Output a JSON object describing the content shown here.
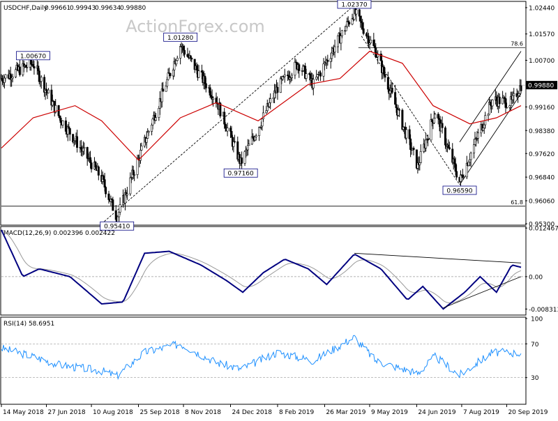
{
  "watermark": "ActionForex.com",
  "chart_data": [
    {
      "type": "candlestick",
      "title": "USDCHF,Daily",
      "ohlc": [
        "0.99661",
        "0.99943",
        "0.99634",
        "0.99880"
      ],
      "last_price": "0.99880",
      "ylim": [
        0.953,
        1.026
      ],
      "yticks": [
        "1.02440",
        "1.01570",
        "1.00700",
        "0.99880",
        "0.99160",
        "0.98380",
        "0.97620",
        "0.96840",
        "0.96060",
        "0.95300"
      ],
      "callouts": [
        {
          "label": "1.00670",
          "price": 1.0067,
          "date": "2018-06-14"
        },
        {
          "label": "1.01280",
          "price": 1.0128,
          "date": "2018-11-05"
        },
        {
          "label": "1.02370",
          "price": 1.0237,
          "date": "2019-04-24"
        },
        {
          "label": "0.97160",
          "price": 0.9716,
          "date": "2019-01-03"
        },
        {
          "label": "0.95410",
          "price": 0.9541,
          "date": "2018-09-04"
        },
        {
          "label": "0.96590",
          "price": 0.9659,
          "date": "2019-08-05"
        }
      ],
      "fib_levels": [
        {
          "label": "78.6",
          "price": 1.0112
        },
        {
          "label": "61.8",
          "price": 0.9588
        }
      ],
      "key_points": [
        {
          "date": "2018-05-14",
          "price": 1.001
        },
        {
          "date": "2018-06-14",
          "price": 1.006
        },
        {
          "date": "2018-07-10",
          "price": 0.988
        },
        {
          "date": "2018-08-20",
          "price": 0.968
        },
        {
          "date": "2018-09-04",
          "price": 0.955
        },
        {
          "date": "2018-10-01",
          "price": 0.98
        },
        {
          "date": "2018-11-05",
          "price": 1.012
        },
        {
          "date": "2018-12-10",
          "price": 0.994
        },
        {
          "date": "2019-01-03",
          "price": 0.973
        },
        {
          "date": "2019-02-08",
          "price": 0.998
        },
        {
          "date": "2019-02-28",
          "price": 1.006
        },
        {
          "date": "2019-03-15",
          "price": 0.999
        },
        {
          "date": "2019-04-24",
          "price": 1.023
        },
        {
          "date": "2019-05-15",
          "price": 1.01
        },
        {
          "date": "2019-06-25",
          "price": 0.972
        },
        {
          "date": "2019-07-12",
          "price": 0.99
        },
        {
          "date": "2019-08-05",
          "price": 0.967
        },
        {
          "date": "2019-09-06",
          "price": 0.994
        },
        {
          "date": "2019-09-25",
          "price": 0.993
        },
        {
          "date": "2019-10-04",
          "price": 0.9988
        }
      ],
      "ma_points": [
        {
          "date": "2018-05-14",
          "price": 0.978
        },
        {
          "date": "2018-06-14",
          "price": 0.988
        },
        {
          "date": "2018-07-25",
          "price": 0.992
        },
        {
          "date": "2018-08-20",
          "price": 0.987
        },
        {
          "date": "2018-09-25",
          "price": 0.974
        },
        {
          "date": "2018-11-05",
          "price": 0.988
        },
        {
          "date": "2018-12-10",
          "price": 0.993
        },
        {
          "date": "2019-01-20",
          "price": 0.987
        },
        {
          "date": "2019-03-10",
          "price": 0.999
        },
        {
          "date": "2019-04-10",
          "price": 1.001
        },
        {
          "date": "2019-05-09",
          "price": 1.01
        },
        {
          "date": "2019-06-10",
          "price": 1.006
        },
        {
          "date": "2019-07-10",
          "price": 0.992
        },
        {
          "date": "2019-08-15",
          "price": 0.986
        },
        {
          "date": "2019-09-10",
          "price": 0.988
        },
        {
          "date": "2019-10-04",
          "price": 0.992
        }
      ],
      "trendlines": [
        {
          "from": {
            "date": "2018-08-20",
            "price": 0.953
          },
          "to": {
            "date": "2019-04-20",
            "price": 1.024
          },
          "style": "dashed"
        },
        {
          "from": {
            "date": "2019-05-01",
            "price": 1.015
          },
          "to": {
            "date": "2019-08-05",
            "price": 0.9659
          },
          "style": "dashed"
        },
        {
          "from": {
            "date": "2019-08-05",
            "price": 0.9659
          },
          "to": {
            "date": "2019-10-04",
            "price": 0.996
          },
          "style": "solid"
        },
        {
          "from": {
            "date": "2019-08-05",
            "price": 0.98
          },
          "to": {
            "date": "2019-10-04",
            "price": 1.01
          },
          "style": "solid"
        }
      ]
    },
    {
      "type": "line",
      "title": "MACD(12,26,9) 0.002396 0.002422",
      "yticks": [
        "0.012467",
        "0.00",
        "-0.008313"
      ],
      "ylim": [
        -0.0095,
        0.0125
      ],
      "macd_points": [
        {
          "date": "2018-05-14",
          "value": 0.012
        },
        {
          "date": "2018-06-04",
          "value": 0.0
        },
        {
          "date": "2018-06-20",
          "value": 0.002
        },
        {
          "date": "2018-07-20",
          "value": 0.0
        },
        {
          "date": "2018-08-20",
          "value": -0.007
        },
        {
          "date": "2018-09-10",
          "value": -0.0065
        },
        {
          "date": "2018-10-01",
          "value": 0.006
        },
        {
          "date": "2018-10-25",
          "value": 0.0065
        },
        {
          "date": "2018-11-25",
          "value": 0.003
        },
        {
          "date": "2018-12-20",
          "value": -0.001
        },
        {
          "date": "2019-01-05",
          "value": -0.004
        },
        {
          "date": "2019-01-25",
          "value": 0.001
        },
        {
          "date": "2019-02-15",
          "value": 0.0045
        },
        {
          "date": "2019-03-10",
          "value": 0.002
        },
        {
          "date": "2019-03-28",
          "value": -0.002
        },
        {
          "date": "2019-04-24",
          "value": 0.0058
        },
        {
          "date": "2019-05-20",
          "value": 0.002
        },
        {
          "date": "2019-06-15",
          "value": -0.006
        },
        {
          "date": "2019-06-30",
          "value": -0.0025
        },
        {
          "date": "2019-07-20",
          "value": -0.0083
        },
        {
          "date": "2019-08-10",
          "value": -0.004
        },
        {
          "date": "2019-08-25",
          "value": 0.0
        },
        {
          "date": "2019-09-10",
          "value": -0.004
        },
        {
          "date": "2019-09-25",
          "value": 0.003
        },
        {
          "date": "2019-10-04",
          "value": 0.0024
        }
      ],
      "trendlines": [
        {
          "from": {
            "date": "2019-04-24",
            "value": 0.006
          },
          "to": {
            "date": "2019-10-04",
            "value": 0.0035
          }
        },
        {
          "from": {
            "date": "2019-07-20",
            "value": -0.008
          },
          "to": {
            "date": "2019-10-04",
            "value": 0.0
          }
        }
      ]
    },
    {
      "type": "line",
      "title": "RSI(14) 58.6951",
      "yticks": [
        "100",
        "70",
        "30"
      ],
      "ylim": [
        0,
        100
      ],
      "guides": [
        70,
        30
      ],
      "rsi_points": [
        {
          "date": "2018-05-14",
          "value": 65
        },
        {
          "date": "2018-06-14",
          "value": 55
        },
        {
          "date": "2018-07-10",
          "value": 45
        },
        {
          "date": "2018-08-20",
          "value": 38
        },
        {
          "date": "2018-09-04",
          "value": 32
        },
        {
          "date": "2018-10-01",
          "value": 60
        },
        {
          "date": "2018-11-05",
          "value": 70
        },
        {
          "date": "2018-12-10",
          "value": 48
        },
        {
          "date": "2019-01-03",
          "value": 40
        },
        {
          "date": "2019-02-08",
          "value": 60
        },
        {
          "date": "2019-03-15",
          "value": 50
        },
        {
          "date": "2019-04-24",
          "value": 78
        },
        {
          "date": "2019-05-15",
          "value": 50
        },
        {
          "date": "2019-06-25",
          "value": 35
        },
        {
          "date": "2019-07-12",
          "value": 55
        },
        {
          "date": "2019-08-05",
          "value": 33
        },
        {
          "date": "2019-09-06",
          "value": 60
        },
        {
          "date": "2019-10-04",
          "value": 59
        }
      ]
    }
  ],
  "x_axis": {
    "start": "2018-05-14",
    "end": "2019-10-04",
    "ticks": [
      {
        "label": "14 May 2018",
        "date": "2018-05-14"
      },
      {
        "label": "27 Jun 2018",
        "date": "2018-06-27"
      },
      {
        "label": "10 Aug 2018",
        "date": "2018-08-10"
      },
      {
        "label": "25 Sep 2018",
        "date": "2018-09-25"
      },
      {
        "label": "8 Nov 2018",
        "date": "2018-11-08"
      },
      {
        "label": "24 Dec 2018",
        "date": "2018-12-24"
      },
      {
        "label": "8 Feb 2019",
        "date": "2019-02-08"
      },
      {
        "label": "26 Mar 2019",
        "date": "2019-03-26"
      },
      {
        "label": "9 May 2019",
        "date": "2019-05-09"
      },
      {
        "label": "24 Jun 2019",
        "date": "2019-06-24"
      },
      {
        "label": "7 Aug 2019",
        "date": "2019-08-07"
      },
      {
        "label": "20 Sep 2019",
        "date": "2019-09-20"
      }
    ]
  },
  "colors": {
    "candles": "#000000",
    "ma": "#cc0000",
    "macd": "#000080",
    "signal": "#999999",
    "rsi": "#1e90ff",
    "price_line": "#808080",
    "watermark": "#c8c8c8"
  }
}
